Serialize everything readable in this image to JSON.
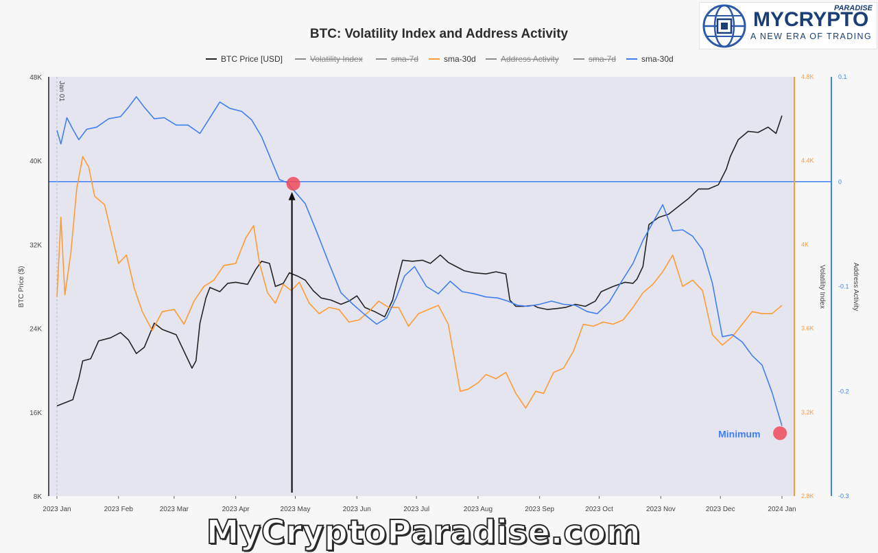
{
  "logo": {
    "main": "MYCRYPTO",
    "paradise": "PARADISE",
    "tagline": "A NEW ERA OF TRADING"
  },
  "watermark": "MyCryptoParadise.com",
  "chart_data": {
    "type": "line",
    "title": "BTC: Volatility Index and Address Activity",
    "legend": [
      {
        "label": "BTC Price [USD]",
        "color": "#222222",
        "visible": true
      },
      {
        "label": "Volatility Index",
        "color": "#8a8a8a",
        "visible": false
      },
      {
        "label": "sma-7d",
        "color": "#8a8a8a",
        "visible": false
      },
      {
        "label": "sma-30d",
        "color": "#ff9a33",
        "visible": true
      },
      {
        "label": "Address Activity",
        "color": "#8a8a8a",
        "visible": false
      },
      {
        "label": "sma-7d",
        "color": "#8a8a8a",
        "visible": false
      },
      {
        "label": "sma-30d",
        "color": "#3f7ef0",
        "visible": true
      }
    ],
    "x_ticks": [
      "2023 Jan",
      "2023 Feb",
      "2023 Mar",
      "2023 Apr",
      "2023 May",
      "2023 Jun",
      "2023 Jul",
      "2023 Aug",
      "2023 Sep",
      "2023 Oct",
      "2023 Nov",
      "2023 Dec",
      "2024 Jan"
    ],
    "x_range": [
      "2023-01-01",
      "2024-01-01"
    ],
    "jan_marker": "Jan 01",
    "y_left": {
      "label": "BTC Price ($)",
      "ticks": [
        "8K",
        "16K",
        "24K",
        "32K",
        "40K",
        "48K"
      ],
      "range": [
        8000,
        48000
      ]
    },
    "y_right1": {
      "label": "Volatility Index",
      "ticks": [
        "2.8K",
        "3.2K",
        "3.6K",
        "4K",
        "4.4K",
        "4.8K"
      ],
      "range": [
        2800,
        4800
      ],
      "color": "#ff9a33"
    },
    "y_right2": {
      "label": "Address Activity",
      "ticks": [
        "-0.3",
        "-0.2",
        "-0.1",
        "0",
        "0.1"
      ],
      "range": [
        -0.3,
        0.1
      ],
      "color": "#3f7ef0"
    },
    "zero_line": 0,
    "annotations": [
      {
        "text": "Minimum",
        "date": "2023-12-31",
        "value": -0.24
      },
      {
        "text": "",
        "date": "2023-04-30",
        "value": -0.002,
        "arrow": true
      }
    ],
    "series": [
      {
        "name": "BTC Price [USD]",
        "axis": "left",
        "color": "#222222",
        "dates": [
          "2023-01-01",
          "2023-01-09",
          "2023-01-12",
          "2023-01-14",
          "2023-01-18",
          "2023-01-22",
          "2023-01-28",
          "2023-02-02",
          "2023-02-06",
          "2023-02-10",
          "2023-02-14",
          "2023-02-19",
          "2023-02-23",
          "2023-03-02",
          "2023-03-10",
          "2023-03-12",
          "2023-03-14",
          "2023-03-17",
          "2023-03-19",
          "2023-03-24",
          "2023-03-28",
          "2023-04-01",
          "2023-04-07",
          "2023-04-11",
          "2023-04-14",
          "2023-04-18",
          "2023-04-21",
          "2023-04-25",
          "2023-04-28",
          "2023-05-02",
          "2023-05-06",
          "2023-05-10",
          "2023-05-14",
          "2023-05-19",
          "2023-05-24",
          "2023-05-28",
          "2023-06-01",
          "2023-06-05",
          "2023-06-10",
          "2023-06-15",
          "2023-06-19",
          "2023-06-21",
          "2023-06-24",
          "2023-06-29",
          "2023-07-04",
          "2023-07-08",
          "2023-07-13",
          "2023-07-17",
          "2023-07-21",
          "2023-07-25",
          "2023-07-30",
          "2023-08-05",
          "2023-08-10",
          "2023-08-15",
          "2023-08-17",
          "2023-08-20",
          "2023-08-24",
          "2023-08-29",
          "2023-08-31",
          "2023-09-05",
          "2023-09-10",
          "2023-09-14",
          "2023-09-19",
          "2023-09-24",
          "2023-09-29",
          "2023-10-02",
          "2023-10-08",
          "2023-10-14",
          "2023-10-18",
          "2023-10-20",
          "2023-10-23",
          "2023-10-26",
          "2023-10-31",
          "2023-11-05",
          "2023-11-09",
          "2023-11-15",
          "2023-11-20",
          "2023-11-25",
          "2023-11-30",
          "2023-12-04",
          "2023-12-06",
          "2023-12-10",
          "2023-12-15",
          "2023-12-20",
          "2023-12-25",
          "2023-12-29",
          "2024-01-01"
        ],
        "values": [
          16600,
          17200,
          19200,
          20900,
          21100,
          22800,
          23100,
          23600,
          22900,
          21600,
          22200,
          24500,
          23900,
          23400,
          20200,
          20900,
          24500,
          26900,
          27900,
          27500,
          28300,
          28400,
          28200,
          29600,
          30400,
          30200,
          28000,
          28300,
          29300,
          29000,
          28600,
          27600,
          26900,
          26700,
          26300,
          26600,
          27100,
          26000,
          25600,
          25100,
          26700,
          28300,
          30500,
          30400,
          30500,
          30200,
          31000,
          30300,
          29900,
          29500,
          29300,
          29200,
          29400,
          29200,
          26700,
          26100,
          26100,
          26200,
          26000,
          25800,
          25900,
          26000,
          26300,
          26100,
          26600,
          27500,
          28000,
          28400,
          28300,
          28700,
          29900,
          33900,
          34600,
          34900,
          35500,
          36400,
          37300,
          37300,
          37700,
          39200,
          40400,
          42000,
          42800,
          42700,
          43200,
          42600,
          44300
        ]
      },
      {
        "name": "sma-30d",
        "axis": "vol",
        "color": "#ff9a33",
        "dates": [
          "2023-01-01",
          "2023-01-03",
          "2023-01-05",
          "2023-01-08",
          "2023-01-11",
          "2023-01-14",
          "2023-01-17",
          "2023-01-20",
          "2023-01-25",
          "2023-02-01",
          "2023-02-05",
          "2023-02-09",
          "2023-02-13",
          "2023-02-18",
          "2023-02-23",
          "2023-03-01",
          "2023-03-06",
          "2023-03-11",
          "2023-03-16",
          "2023-03-21",
          "2023-03-26",
          "2023-04-01",
          "2023-04-06",
          "2023-04-10",
          "2023-04-13",
          "2023-04-17",
          "2023-04-21",
          "2023-04-25",
          "2023-04-29",
          "2023-05-03",
          "2023-05-08",
          "2023-05-13",
          "2023-05-18",
          "2023-05-23",
          "2023-05-28",
          "2023-06-02",
          "2023-06-07",
          "2023-06-12",
          "2023-06-17",
          "2023-06-22",
          "2023-06-27",
          "2023-07-02",
          "2023-07-07",
          "2023-07-12",
          "2023-07-17",
          "2023-07-20",
          "2023-07-23",
          "2023-07-27",
          "2023-08-01",
          "2023-08-05",
          "2023-08-10",
          "2023-08-15",
          "2023-08-20",
          "2023-08-25",
          "2023-08-30",
          "2023-09-03",
          "2023-09-08",
          "2023-09-13",
          "2023-09-18",
          "2023-09-23",
          "2023-09-28",
          "2023-10-03",
          "2023-10-08",
          "2023-10-13",
          "2023-10-18",
          "2023-10-23",
          "2023-10-28",
          "2023-11-02",
          "2023-11-07",
          "2023-11-12",
          "2023-11-17",
          "2023-11-22",
          "2023-11-27",
          "2023-12-02",
          "2023-12-07",
          "2023-12-12",
          "2023-12-17",
          "2023-12-22",
          "2023-12-27",
          "2024-01-01"
        ],
        "values": [
          3750,
          4130,
          3760,
          3960,
          4270,
          4420,
          4370,
          4230,
          4190,
          3910,
          3950,
          3790,
          3680,
          3590,
          3680,
          3690,
          3620,
          3730,
          3800,
          3830,
          3900,
          3910,
          4030,
          4090,
          3910,
          3770,
          3720,
          3810,
          3780,
          3820,
          3720,
          3670,
          3700,
          3690,
          3630,
          3640,
          3680,
          3730,
          3700,
          3700,
          3610,
          3670,
          3690,
          3710,
          3620,
          3460,
          3300,
          3310,
          3340,
          3380,
          3360,
          3390,
          3290,
          3220,
          3300,
          3290,
          3390,
          3410,
          3490,
          3620,
          3610,
          3630,
          3620,
          3640,
          3700,
          3770,
          3810,
          3870,
          3950,
          3800,
          3830,
          3780,
          3570,
          3520,
          3560,
          3620,
          3680,
          3670,
          3670,
          3710
        ]
      },
      {
        "name": "sma-30d",
        "axis": "addr",
        "color": "#3f7ef0",
        "dates": [
          "2023-01-01",
          "2023-01-03",
          "2023-01-06",
          "2023-01-09",
          "2023-01-12",
          "2023-01-16",
          "2023-01-21",
          "2023-01-27",
          "2023-02-02",
          "2023-02-06",
          "2023-02-10",
          "2023-02-14",
          "2023-02-19",
          "2023-02-24",
          "2023-03-02",
          "2023-03-08",
          "2023-03-14",
          "2023-03-19",
          "2023-03-24",
          "2023-03-29",
          "2023-04-04",
          "2023-04-09",
          "2023-04-14",
          "2023-04-19",
          "2023-04-23",
          "2023-04-27",
          "2023-05-01",
          "2023-05-06",
          "2023-05-12",
          "2023-05-18",
          "2023-05-24",
          "2023-05-30",
          "2023-06-05",
          "2023-06-11",
          "2023-06-16",
          "2023-06-21",
          "2023-06-25",
          "2023-06-30",
          "2023-07-06",
          "2023-07-12",
          "2023-07-18",
          "2023-07-24",
          "2023-07-30",
          "2023-08-05",
          "2023-08-11",
          "2023-08-16",
          "2023-08-21",
          "2023-08-26",
          "2023-09-01",
          "2023-09-07",
          "2023-09-13",
          "2023-09-19",
          "2023-09-25",
          "2023-09-30",
          "2023-10-06",
          "2023-10-12",
          "2023-10-18",
          "2023-10-23",
          "2023-10-28",
          "2023-11-02",
          "2023-11-07",
          "2023-11-12",
          "2023-11-17",
          "2023-11-22",
          "2023-11-27",
          "2023-12-02",
          "2023-12-07",
          "2023-12-12",
          "2023-12-17",
          "2023-12-22",
          "2023-12-27",
          "2024-01-01"
        ],
        "values": [
          0.049,
          0.036,
          0.061,
          0.05,
          0.04,
          0.05,
          0.052,
          0.06,
          0.062,
          0.071,
          0.081,
          0.071,
          0.06,
          0.061,
          0.054,
          0.054,
          0.046,
          0.061,
          0.076,
          0.07,
          0.067,
          0.059,
          0.043,
          0.02,
          0.002,
          -0.001,
          -0.01,
          -0.021,
          -0.049,
          -0.078,
          -0.106,
          -0.117,
          -0.127,
          -0.136,
          -0.13,
          -0.11,
          -0.09,
          -0.081,
          -0.1,
          -0.107,
          -0.095,
          -0.105,
          -0.107,
          -0.11,
          -0.111,
          -0.114,
          -0.118,
          -0.119,
          -0.117,
          -0.114,
          -0.117,
          -0.118,
          -0.124,
          -0.126,
          -0.115,
          -0.096,
          -0.078,
          -0.056,
          -0.039,
          -0.022,
          -0.047,
          -0.046,
          -0.052,
          -0.065,
          -0.097,
          -0.148,
          -0.146,
          -0.153,
          -0.166,
          -0.175,
          -0.201,
          -0.233
        ]
      }
    ]
  }
}
